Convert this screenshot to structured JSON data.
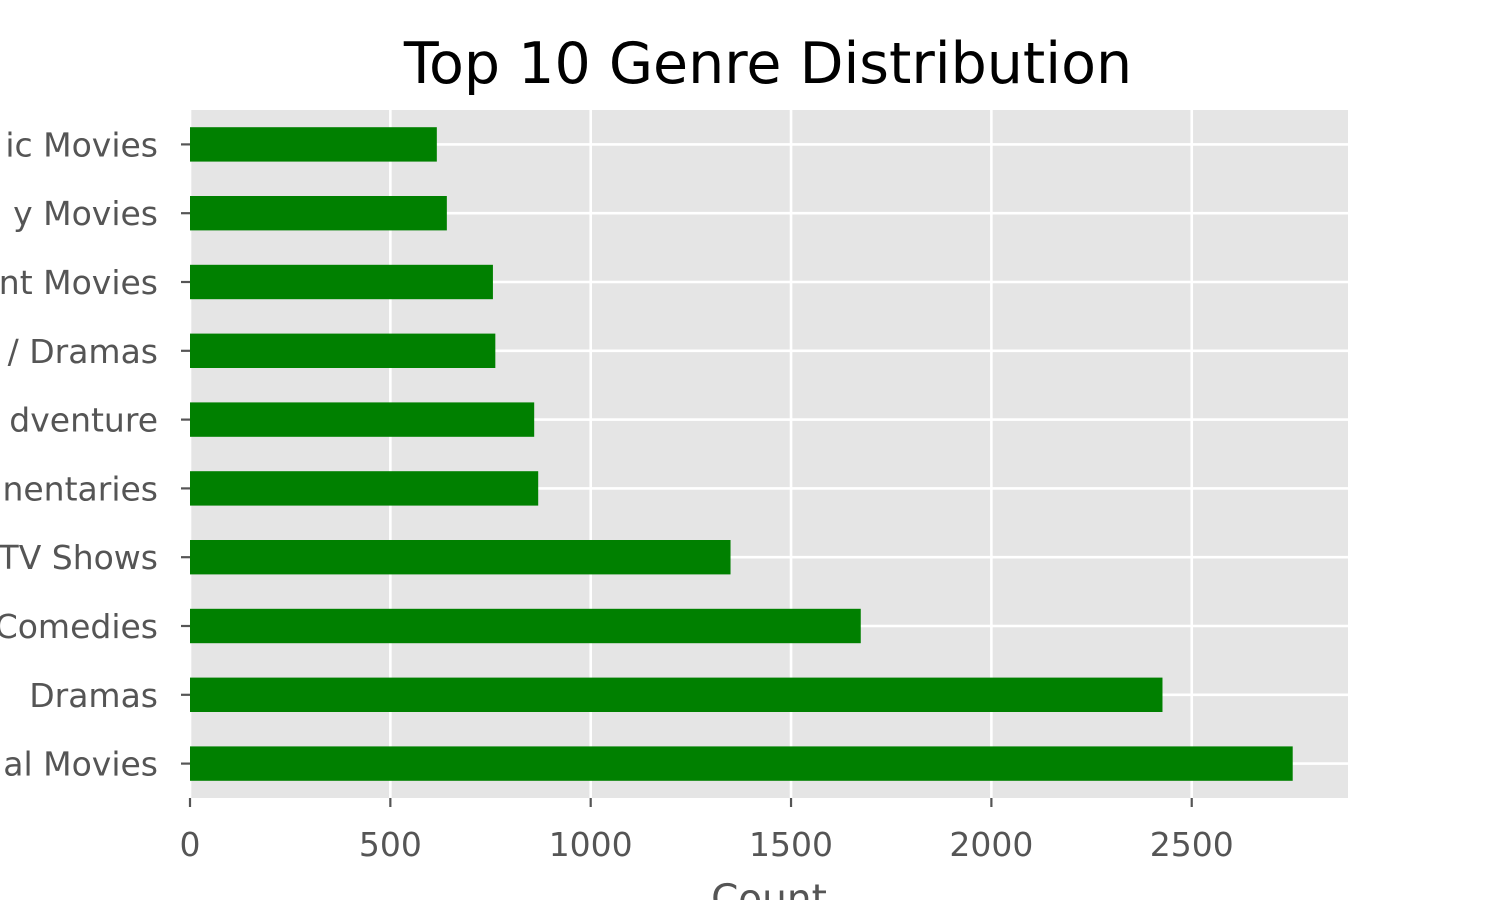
{
  "chart_data": {
    "type": "bar",
    "orientation": "horizontal",
    "title": "Top 10 Genre Distribution",
    "xlabel": "Count",
    "ylabel": "",
    "categories": [
      "International Movies",
      "Dramas",
      "Comedies",
      "International TV Shows",
      "Documentaries",
      "Action & Adventure",
      "International TV Dramas",
      "Independent Movies",
      "Children & Family Movies",
      "Romantic Movies"
    ],
    "category_labels_visible": [
      "al Movies",
      "Dramas",
      "Comedies",
      "TV Shows",
      "nentaries",
      "dventure",
      "/ Dramas",
      "nt Movies",
      "y Movies",
      "ic Movies"
    ],
    "values": [
      2752,
      2427,
      1674,
      1349,
      869,
      859,
      762,
      756,
      641,
      616
    ],
    "xlim": [
      0,
      2890
    ],
    "xticks": [
      0,
      500,
      1000,
      1500,
      2000,
      2500
    ],
    "xtick_labels": [
      "0",
      "500",
      "1000",
      "1500",
      "2000",
      "2500"
    ],
    "grid": true,
    "bar_color": "#008000",
    "plot_background": "#E5E5E5",
    "grid_color": "#FFFFFF",
    "style": "ggplot"
  }
}
